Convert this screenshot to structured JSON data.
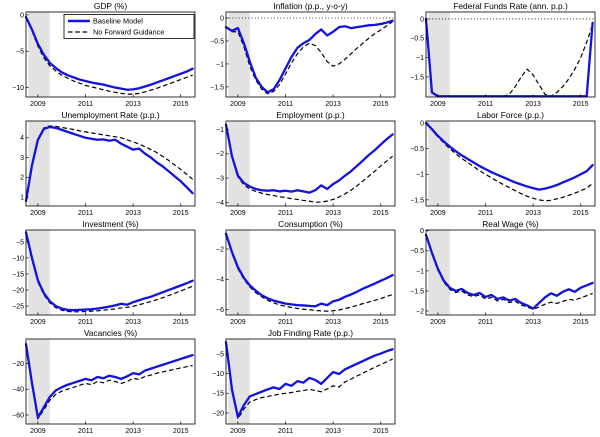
{
  "figure": {
    "rows": 4,
    "cols": 3,
    "background": "#ffffff"
  },
  "legend": {
    "baseline_label": "Baseline Model",
    "no_fg_label": "No Forward Guidance"
  },
  "colors": {
    "baseline": "#1412dd",
    "no_fg": "#000000",
    "recession_band": "#e2e2e2",
    "axis": "#000000",
    "background": "#ffffff"
  },
  "x": {
    "start": 2008.5,
    "step": 0.25,
    "lim": [
      2008.5,
      2015.6
    ],
    "ticks": [
      2009,
      2011,
      2013,
      2015
    ],
    "tick_labels": [
      "2009",
      "2011",
      "2013",
      "2015"
    ]
  },
  "recession_band": [
    2008.6,
    2009.5
  ],
  "chart_data": [
    {
      "type": "line",
      "title": "GDP (%)",
      "ylim": [
        -11.3,
        0.4
      ],
      "yticks": [
        0,
        -5,
        -10
      ],
      "zero_line": false,
      "legend": true,
      "series": [
        {
          "name": "Baseline Model",
          "values": [
            -0.3,
            -2.0,
            -4.0,
            -5.5,
            -6.6,
            -7.3,
            -7.9,
            -8.3,
            -8.6,
            -8.9,
            -9.1,
            -9.3,
            -9.45,
            -9.6,
            -9.8,
            -10.0,
            -10.15,
            -10.3,
            -10.25,
            -10.1,
            -9.85,
            -9.6,
            -9.3,
            -9.0,
            -8.7,
            -8.4,
            -8.1,
            -7.8,
            -7.4
          ]
        },
        {
          "name": "No Forward Guidance",
          "values": [
            -0.3,
            -2.2,
            -4.3,
            -5.9,
            -7.0,
            -7.7,
            -8.3,
            -8.7,
            -9.1,
            -9.4,
            -9.7,
            -9.9,
            -10.1,
            -10.3,
            -10.5,
            -10.65,
            -10.8,
            -10.9,
            -10.9,
            -10.8,
            -10.6,
            -10.35,
            -10.1,
            -9.8,
            -9.5,
            -9.2,
            -8.9,
            -8.6,
            -8.3
          ]
        }
      ]
    },
    {
      "type": "line",
      "title": "Inflation (p.p., y-o-y)",
      "ylim": [
        -1.72,
        0.13
      ],
      "yticks": [
        0,
        -0.5,
        -1,
        -1.5
      ],
      "zero_line": true,
      "legend": false,
      "series": [
        {
          "name": "Baseline Model",
          "values": [
            -0.2,
            -0.28,
            -0.22,
            -0.55,
            -0.95,
            -1.3,
            -1.5,
            -1.62,
            -1.55,
            -1.35,
            -1.1,
            -0.85,
            -0.65,
            -0.55,
            -0.48,
            -0.35,
            -0.25,
            -0.38,
            -0.3,
            -0.2,
            -0.18,
            -0.22,
            -0.2,
            -0.18,
            -0.16,
            -0.15,
            -0.13,
            -0.1,
            -0.06
          ]
        },
        {
          "name": "No Forward Guidance",
          "values": [
            -0.2,
            -0.3,
            -0.3,
            -0.62,
            -1.05,
            -1.35,
            -1.55,
            -1.65,
            -1.6,
            -1.45,
            -1.22,
            -0.98,
            -0.78,
            -0.63,
            -0.55,
            -0.6,
            -0.75,
            -0.95,
            -1.05,
            -1.0,
            -0.9,
            -0.78,
            -0.66,
            -0.55,
            -0.44,
            -0.34,
            -0.26,
            -0.17,
            -0.08
          ]
        }
      ]
    },
    {
      "type": "line",
      "title": "Federal Funds Rate (ann. p.p.)",
      "ylim": [
        -2.02,
        0.18
      ],
      "yticks": [
        0,
        -0.5,
        -1,
        -1.5
      ],
      "zero_line": true,
      "legend": false,
      "series": [
        {
          "name": "Baseline Model",
          "values": [
            0,
            -1.9,
            -2,
            -2,
            -2,
            -2,
            -2,
            -2,
            -2,
            -2,
            -2,
            -2,
            -2,
            -2,
            -2,
            -2,
            -2,
            -2,
            -2,
            -2,
            -2,
            -2,
            -2,
            -2,
            -2,
            -2,
            -2,
            -2,
            -0.1
          ]
        },
        {
          "name": "No Forward Guidance",
          "values": [
            0,
            -1.9,
            -2,
            -2,
            -2,
            -2,
            -2,
            -2,
            -2,
            -2,
            -2,
            -2,
            -2,
            -2,
            -1.95,
            -1.75,
            -1.5,
            -1.3,
            -1.45,
            -1.7,
            -1.95,
            -2,
            -1.9,
            -1.75,
            -1.55,
            -1.3,
            -1.0,
            -0.6,
            -0.15
          ]
        }
      ]
    },
    {
      "type": "line",
      "title": "Unemployment Rate (p.p.)",
      "ylim": [
        0.55,
        4.85
      ],
      "yticks": [
        4,
        3,
        2,
        1
      ],
      "zero_line": false,
      "legend": false,
      "series": [
        {
          "name": "Baseline Model",
          "values": [
            0.8,
            2.6,
            3.9,
            4.45,
            4.55,
            4.5,
            4.4,
            4.3,
            4.2,
            4.1,
            4.0,
            3.95,
            3.9,
            3.92,
            3.85,
            3.9,
            3.7,
            3.55,
            3.4,
            3.45,
            3.2,
            3.0,
            2.75,
            2.55,
            2.3,
            2.05,
            1.8,
            1.5,
            1.2
          ]
        },
        {
          "name": "No Forward Guidance",
          "values": [
            0.8,
            2.65,
            3.95,
            4.5,
            4.6,
            4.58,
            4.52,
            4.47,
            4.42,
            4.35,
            4.3,
            4.25,
            4.2,
            4.15,
            4.1,
            4.05,
            4.0,
            3.9,
            3.8,
            3.68,
            3.55,
            3.4,
            3.25,
            3.05,
            2.85,
            2.62,
            2.4,
            2.15,
            1.9
          ]
        }
      ]
    },
    {
      "type": "line",
      "title": "Employment (p.p.)",
      "ylim": [
        -4.15,
        -0.65
      ],
      "yticks": [
        -1,
        -2,
        -3,
        -4
      ],
      "zero_line": false,
      "legend": false,
      "series": [
        {
          "name": "Baseline Model",
          "values": [
            -0.8,
            -2.1,
            -2.9,
            -3.2,
            -3.35,
            -3.45,
            -3.5,
            -3.52,
            -3.5,
            -3.55,
            -3.52,
            -3.56,
            -3.5,
            -3.55,
            -3.6,
            -3.5,
            -3.3,
            -3.45,
            -3.25,
            -3.1,
            -2.9,
            -2.72,
            -2.5,
            -2.28,
            -2.05,
            -1.85,
            -1.62,
            -1.4,
            -1.2
          ]
        },
        {
          "name": "No Forward Guidance",
          "values": [
            -0.8,
            -2.15,
            -2.95,
            -3.28,
            -3.45,
            -3.55,
            -3.62,
            -3.68,
            -3.72,
            -3.77,
            -3.8,
            -3.85,
            -3.88,
            -3.92,
            -3.95,
            -4.0,
            -3.98,
            -3.95,
            -3.88,
            -3.78,
            -3.65,
            -3.5,
            -3.32,
            -3.12,
            -2.92,
            -2.72,
            -2.5,
            -2.3,
            -2.1
          ]
        }
      ]
    },
    {
      "type": "line",
      "title": "Labor Force (p.p.)",
      "ylim": [
        -1.62,
        0.04
      ],
      "yticks": [
        0,
        -0.5,
        -1,
        -1.5
      ],
      "zero_line": false,
      "legend": false,
      "series": [
        {
          "name": "Baseline Model",
          "values": [
            0,
            -0.12,
            -0.25,
            -0.36,
            -0.46,
            -0.55,
            -0.63,
            -0.7,
            -0.77,
            -0.84,
            -0.9,
            -0.96,
            -1.01,
            -1.06,
            -1.11,
            -1.16,
            -1.2,
            -1.24,
            -1.27,
            -1.3,
            -1.28,
            -1.25,
            -1.21,
            -1.16,
            -1.11,
            -1.06,
            -1.0,
            -0.94,
            -0.82
          ]
        },
        {
          "name": "No Forward Guidance",
          "values": [
            0,
            -0.13,
            -0.27,
            -0.39,
            -0.5,
            -0.6,
            -0.69,
            -0.77,
            -0.85,
            -0.93,
            -1.0,
            -1.07,
            -1.14,
            -1.2,
            -1.26,
            -1.32,
            -1.38,
            -1.43,
            -1.47,
            -1.5,
            -1.52,
            -1.51,
            -1.48,
            -1.45,
            -1.41,
            -1.37,
            -1.32,
            -1.27,
            -1.18
          ]
        }
      ]
    },
    {
      "type": "line",
      "title": "Investment (%)",
      "ylim": [
        -27.8,
        -1.3
      ],
      "yticks": [
        -5,
        -10,
        -15,
        -20,
        -25
      ],
      "zero_line": false,
      "legend": false,
      "series": [
        {
          "name": "Baseline Model",
          "values": [
            -2,
            -10,
            -17,
            -21,
            -23.5,
            -25,
            -25.8,
            -26.2,
            -26.3,
            -26.2,
            -26.1,
            -26,
            -25.8,
            -25.5,
            -25.2,
            -24.8,
            -24.3,
            -24.6,
            -23.8,
            -23.2,
            -22.6,
            -22.1,
            -21.4,
            -20.7,
            -20,
            -19.3,
            -18.6,
            -17.9,
            -17.1
          ]
        },
        {
          "name": "No Forward Guidance",
          "values": [
            -2,
            -10.4,
            -17.5,
            -21.5,
            -24,
            -25.5,
            -26.3,
            -26.7,
            -26.8,
            -26.8,
            -26.7,
            -26.6,
            -26.5,
            -26.3,
            -26.1,
            -25.9,
            -25.6,
            -25.4,
            -25.1,
            -24.6,
            -24.1,
            -23.6,
            -23,
            -22.4,
            -21.7,
            -21,
            -20.3,
            -19.6,
            -18.8
          ]
        }
      ]
    },
    {
      "type": "line",
      "title": "Consumption (%)",
      "ylim": [
        -6.35,
        -0.75
      ],
      "yticks": [
        -2,
        -4,
        -6
      ],
      "zero_line": false,
      "legend": false,
      "series": [
        {
          "name": "Baseline Model",
          "values": [
            -1,
            -2.2,
            -3.2,
            -3.9,
            -4.4,
            -4.75,
            -5.05,
            -5.25,
            -5.4,
            -5.5,
            -5.6,
            -5.65,
            -5.7,
            -5.72,
            -5.75,
            -5.78,
            -5.6,
            -5.7,
            -5.45,
            -5.35,
            -5.15,
            -5.0,
            -4.82,
            -4.62,
            -4.45,
            -4.28,
            -4.1,
            -3.92,
            -3.72
          ]
        },
        {
          "name": "No Forward Guidance",
          "values": [
            -1,
            -2.3,
            -3.3,
            -4.0,
            -4.5,
            -4.88,
            -5.15,
            -5.38,
            -5.55,
            -5.68,
            -5.78,
            -5.85,
            -5.92,
            -5.97,
            -6.0,
            -6.05,
            -6.08,
            -6.1,
            -6.07,
            -6.02,
            -5.93,
            -5.83,
            -5.72,
            -5.6,
            -5.5,
            -5.38,
            -5.27,
            -5.13,
            -5.0
          ]
        }
      ]
    },
    {
      "type": "line",
      "title": "Real Wage (%)",
      "ylim": [
        -2.1,
        0.02
      ],
      "yticks": [
        0,
        -0.5,
        -1,
        -1.5,
        -2
      ],
      "zero_line": false,
      "legend": false,
      "series": [
        {
          "name": "Baseline Model",
          "values": [
            -0.1,
            -0.55,
            -0.95,
            -1.25,
            -1.42,
            -1.5,
            -1.45,
            -1.55,
            -1.6,
            -1.55,
            -1.65,
            -1.6,
            -1.7,
            -1.66,
            -1.74,
            -1.7,
            -1.8,
            -1.86,
            -1.94,
            -1.8,
            -1.66,
            -1.56,
            -1.62,
            -1.52,
            -1.46,
            -1.52,
            -1.42,
            -1.36,
            -1.3
          ]
        },
        {
          "name": "No Forward Guidance",
          "values": [
            -0.1,
            -0.56,
            -0.98,
            -1.28,
            -1.46,
            -1.54,
            -1.5,
            -1.6,
            -1.64,
            -1.6,
            -1.7,
            -1.66,
            -1.75,
            -1.71,
            -1.79,
            -1.76,
            -1.85,
            -1.9,
            -1.96,
            -1.9,
            -1.83,
            -1.78,
            -1.81,
            -1.76,
            -1.71,
            -1.73,
            -1.67,
            -1.62,
            -1.56
          ]
        }
      ]
    },
    {
      "type": "line",
      "title": "Vacancies (%)",
      "ylim": [
        -67,
        -1
      ],
      "yticks": [
        -20,
        -40,
        -60
      ],
      "zero_line": false,
      "legend": false,
      "series": [
        {
          "name": "Baseline Model",
          "values": [
            -5,
            -35,
            -62,
            -54,
            -46,
            -41,
            -38.5,
            -36.5,
            -35,
            -33.5,
            -32,
            -33,
            -30.5,
            -31.5,
            -29.5,
            -30.5,
            -32,
            -30,
            -27.5,
            -28.5,
            -25.5,
            -24,
            -22.5,
            -21,
            -19.5,
            -18,
            -16.5,
            -15,
            -13.5
          ]
        },
        {
          "name": "No Forward Guidance",
          "values": [
            -5,
            -36,
            -63,
            -56,
            -48.5,
            -44,
            -41.5,
            -40,
            -38.5,
            -37,
            -35.5,
            -36.5,
            -34,
            -35,
            -33,
            -34,
            -35.5,
            -34,
            -31.5,
            -32.5,
            -30,
            -29,
            -27.5,
            -26.5,
            -25.5,
            -24.5,
            -23.5,
            -22.5,
            -21.5
          ]
        }
      ]
    },
    {
      "type": "line",
      "title": "Job Finding Rate (p.p.)",
      "ylim": [
        -22.8,
        -1.2
      ],
      "yticks": [
        -5,
        -10,
        -15,
        -20
      ],
      "zero_line": false,
      "legend": false,
      "series": [
        {
          "name": "Baseline Model",
          "values": [
            -2,
            -14,
            -21,
            -18,
            -15.8,
            -15.2,
            -14.6,
            -14,
            -13.5,
            -13.9,
            -12.6,
            -13.1,
            -11.9,
            -12.3,
            -11.1,
            -11.6,
            -12.6,
            -11.1,
            -9.6,
            -10.1,
            -8.9,
            -8.2,
            -7.5,
            -6.8,
            -6.1,
            -5.4,
            -4.9,
            -4.3,
            -3.8
          ]
        },
        {
          "name": "No Forward Guidance",
          "values": [
            -2,
            -14.5,
            -21.5,
            -19,
            -17.2,
            -16.6,
            -16.1,
            -15.8,
            -15.5,
            -15.2,
            -15,
            -14.8,
            -14.5,
            -14.3,
            -14,
            -14.3,
            -14.6,
            -13.9,
            -13.1,
            -13.4,
            -12.1,
            -11.4,
            -10.6,
            -9.9,
            -9.1,
            -8.4,
            -7.7,
            -7,
            -6.3
          ]
        }
      ]
    }
  ]
}
